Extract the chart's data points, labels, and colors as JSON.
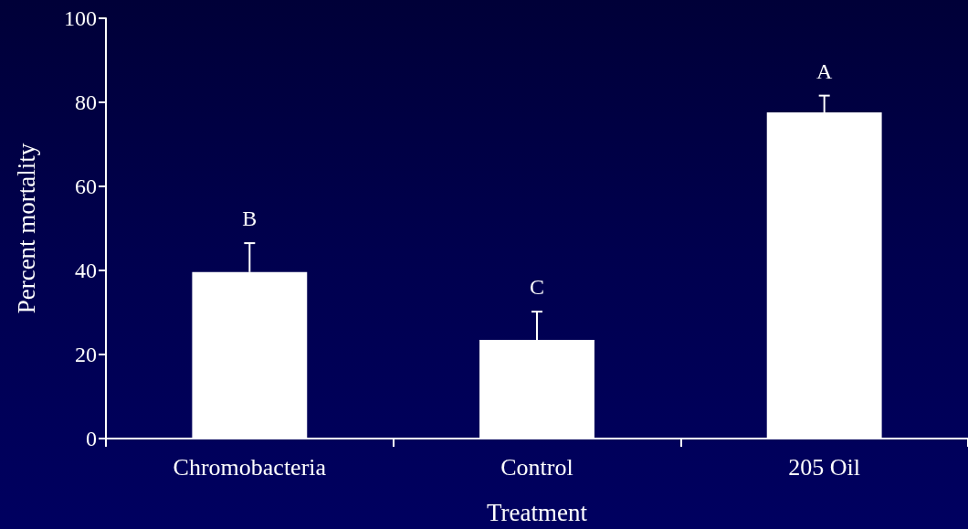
{
  "chart_data": {
    "type": "bar",
    "xlabel": "Treatment",
    "ylabel": "Percent mortality",
    "categories": [
      "Chromobacteria",
      "Control",
      "205 Oil"
    ],
    "values": [
      39.6,
      23.5,
      77.6
    ],
    "color": "#ffffff",
    "errors": [
      [
        39.6,
        46.5
      ],
      [
        23.5,
        30.2
      ],
      [
        77.6,
        81.6
      ]
    ],
    "ylim": [
      0,
      100
    ],
    "yticks": [
      0,
      20,
      40,
      60,
      80,
      100
    ],
    "annotations": [
      "B",
      "C",
      "A"
    ]
  }
}
